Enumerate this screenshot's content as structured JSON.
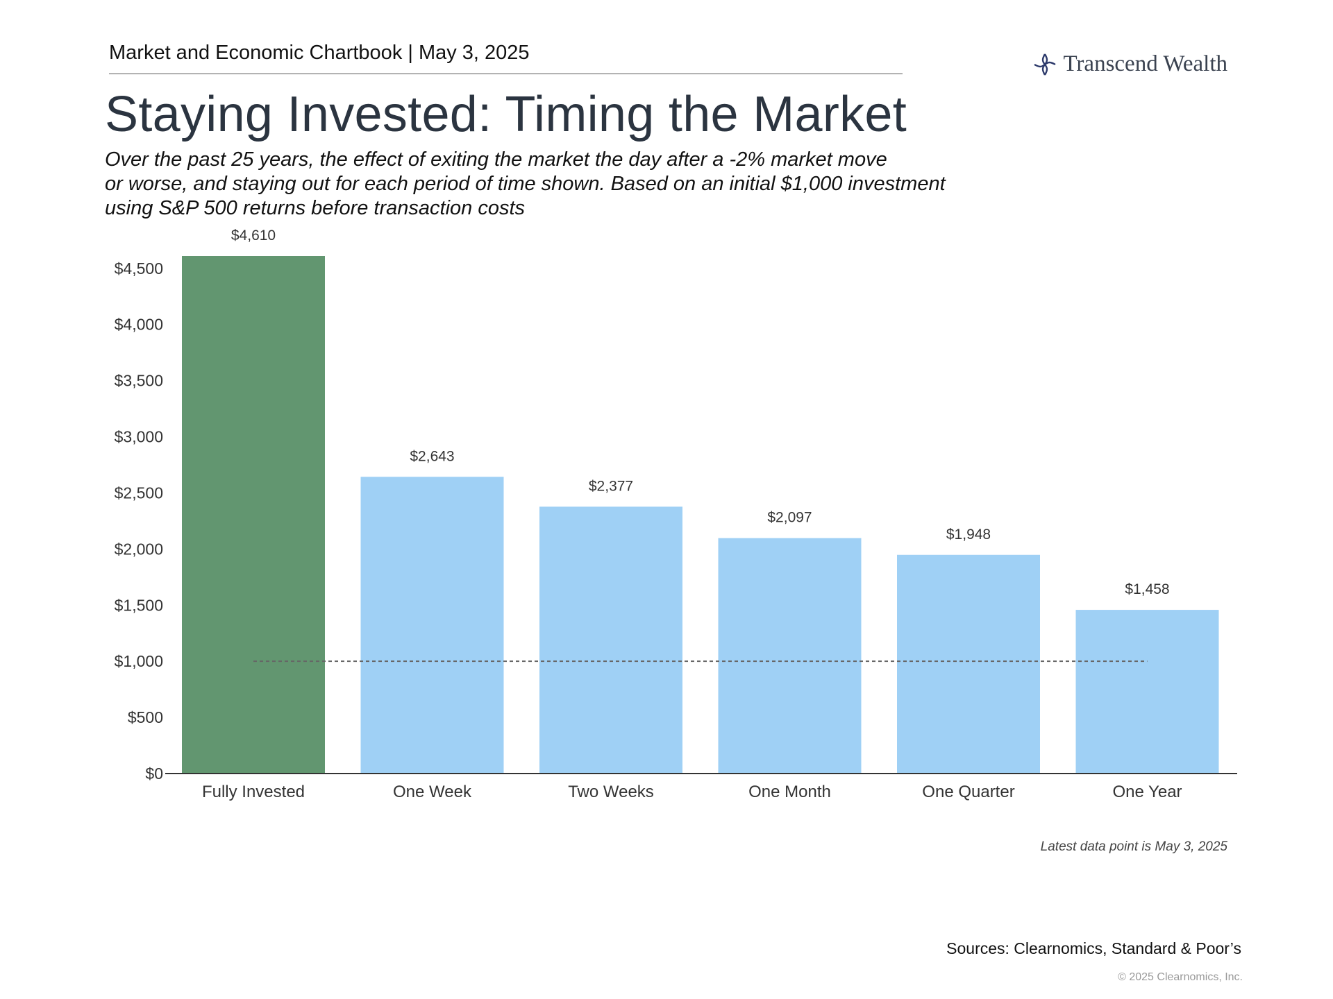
{
  "header": {
    "chartbook": "Market and Economic Chartbook | May 3, 2025",
    "brand": "Transcend Wealth"
  },
  "title": "Staying Invested: Timing the Market",
  "subtitle_lines": [
    "Over the past 25 years, the effect of exiting the market the day after a -2% market move",
    "or worse, and staying out for each period of time shown. Based on an initial $1,000 investment",
    "using S&P 500 returns before transaction costs"
  ],
  "chart_data": {
    "type": "bar",
    "categories": [
      "Fully Invested",
      "One Week",
      "Two Weeks",
      "One Month",
      "One Quarter",
      "One Year"
    ],
    "values": [
      4610,
      2643,
      2377,
      2097,
      1948,
      1458
    ],
    "value_labels": [
      "$4,610",
      "$2,643",
      "$2,377",
      "$2,097",
      "$1,948",
      "$1,458"
    ],
    "y_ticks": [
      0,
      500,
      1000,
      1500,
      2000,
      2500,
      3000,
      3500,
      4000,
      4500
    ],
    "y_tick_labels": [
      "$0",
      "$500",
      "$1,000",
      "$1,500",
      "$2,000",
      "$2,500",
      "$3,000",
      "$3,500",
      "$4,000",
      "$4,500"
    ],
    "ylim": [
      0,
      4610
    ],
    "reference_line": 1000,
    "colors": [
      "#629670",
      "#9fd0f5",
      "#9fd0f5",
      "#9fd0f5",
      "#9fd0f5",
      "#9fd0f5"
    ],
    "grid": false,
    "legend": "none"
  },
  "footer": {
    "note": "Latest data point is May 3, 2025",
    "sources": "Sources: Clearnomics, Standard & Poor’s",
    "copyright": "© 2025 Clearnomics, Inc."
  }
}
